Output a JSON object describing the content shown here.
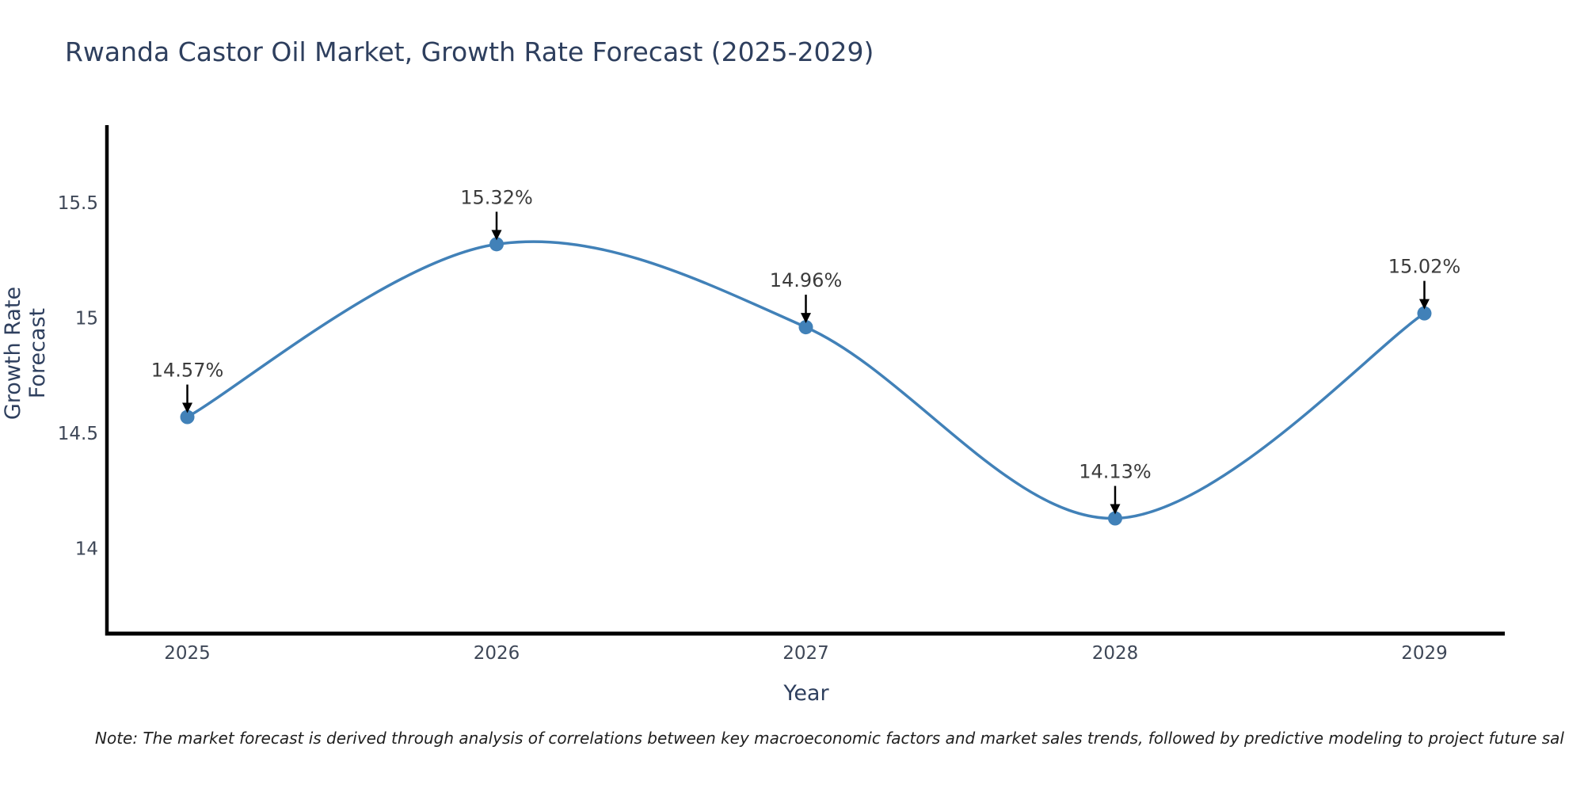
{
  "page": {
    "note": "Note: The market forecast is derived through analysis of correlations between key macroeconomic factors and market sales trends, followed by predictive modeling to project future sal"
  },
  "chart_data": {
    "type": "line",
    "title": "Rwanda Castor Oil Market, Growth Rate Forecast (2025-2029)",
    "xlabel": "Year",
    "ylabel": "Growth Rate Forecast",
    "categories": [
      "2025",
      "2026",
      "2027",
      "2028",
      "2029"
    ],
    "x": [
      2025,
      2026,
      2027,
      2028,
      2029
    ],
    "values": [
      14.57,
      15.32,
      14.96,
      14.13,
      15.02
    ],
    "point_labels": [
      "14.57%",
      "15.32%",
      "14.96%",
      "14.13%",
      "15.02%"
    ],
    "yticks": [
      14,
      14.5,
      15,
      15.5
    ],
    "ytick_labels": [
      "14",
      "14.5",
      "15",
      "15.5"
    ],
    "xlim": [
      2024.74,
      2029.26
    ],
    "ylim": [
      13.63,
      15.83
    ],
    "line_shape": "spline",
    "grid": false,
    "legend_position": "none",
    "annotations_have_arrows": true,
    "colors": {
      "line": "#4181b8",
      "marker": "#4181b8",
      "axis": "#000000",
      "arrow": "#000000",
      "title_text": "#2e3f5e",
      "tick_text": "#3e4757",
      "annotation_text": "#3b3b3b",
      "background": "#ffffff"
    }
  }
}
